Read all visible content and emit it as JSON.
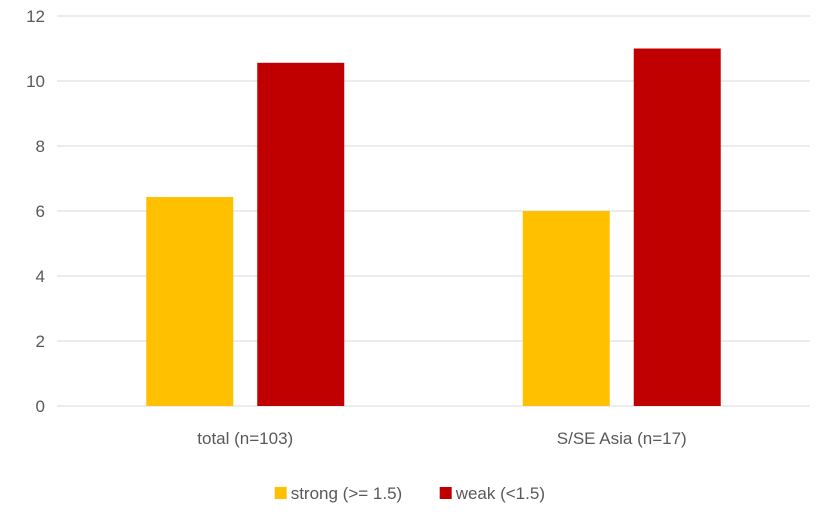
{
  "chart_data": {
    "type": "bar",
    "categories": [
      "total (n=103)",
      "S/SE Asia (n=17)"
    ],
    "series": [
      {
        "name": "strong (>= 1.5)",
        "values": [
          6.43,
          6.0
        ],
        "color": "#ffc000"
      },
      {
        "name": "weak (<1.5)",
        "values": [
          10.56,
          11.0
        ],
        "color": "#c00000"
      }
    ],
    "yticks": [
      "0",
      "2",
      "4",
      "6",
      "8",
      "10",
      "12"
    ],
    "ylim": [
      0,
      12
    ],
    "grid": true,
    "legend_position": "bottom",
    "title": "",
    "xlabel": "",
    "ylabel": ""
  }
}
